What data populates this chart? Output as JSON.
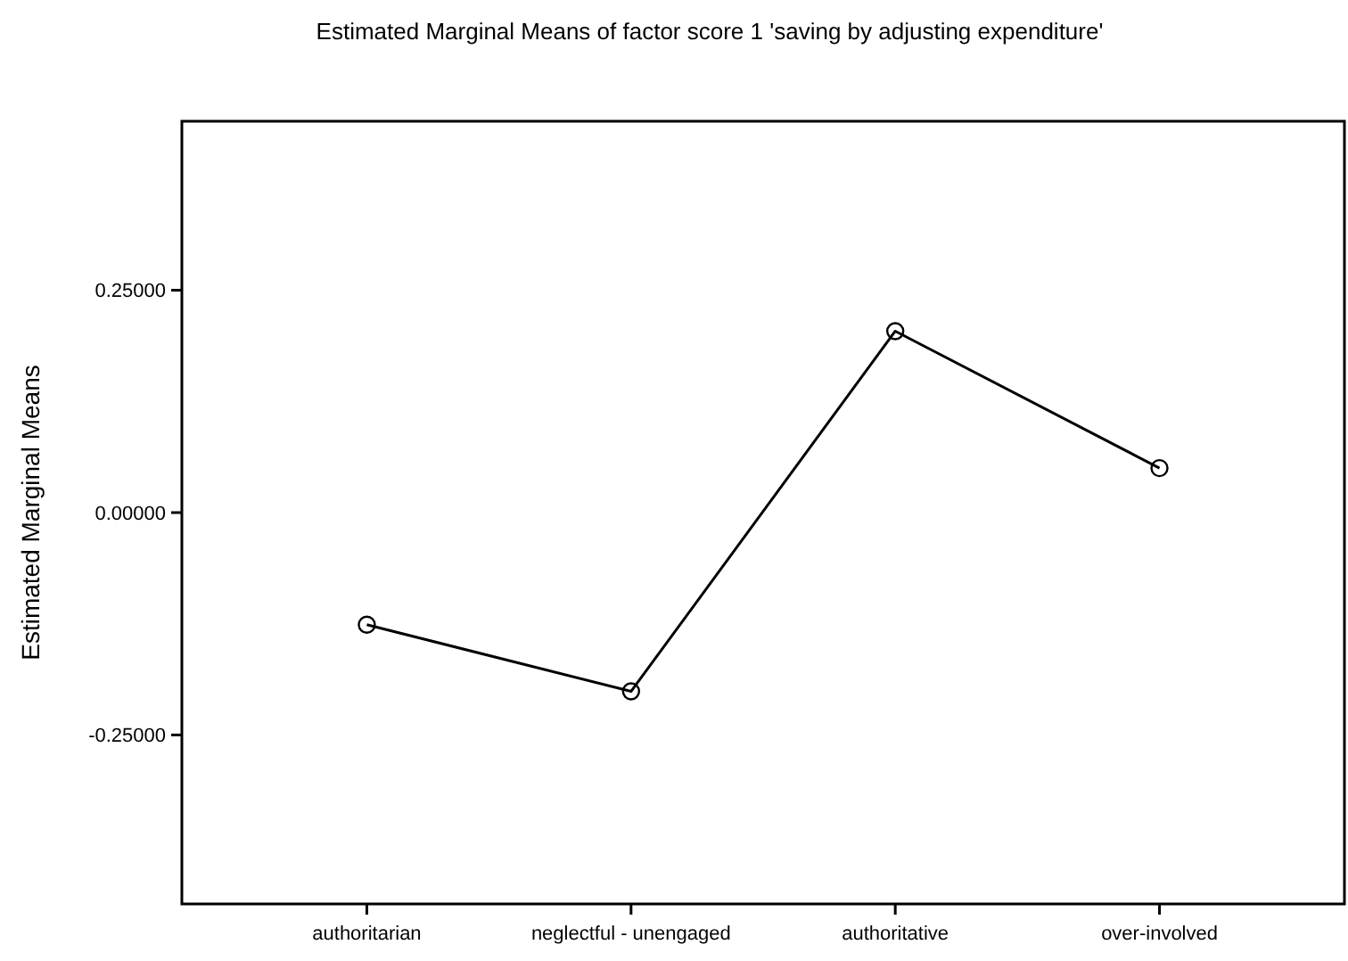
{
  "chart_data": {
    "type": "line",
    "title": "Estimated Marginal Means of factor score 1 'saving by adjusting expenditure'",
    "ylabel": "Estimated Marginal Means",
    "categories": [
      "authoritarian",
      "neglectful - unengaged",
      "authoritative",
      "over-involved"
    ],
    "series": [
      {
        "color": "#000000",
        "values": [
          -0.126,
          -0.201,
          0.204,
          0.05
        ]
      }
    ],
    "ylim": [
      -0.44,
      0.44
    ],
    "yticks": [
      {
        "value": -0.25,
        "label": "-0.25000"
      },
      {
        "value": 0,
        "label": "0.00000"
      },
      {
        "value": 0.25,
        "label": "0.25000"
      }
    ],
    "marker": "circle",
    "line_style": "solid"
  }
}
